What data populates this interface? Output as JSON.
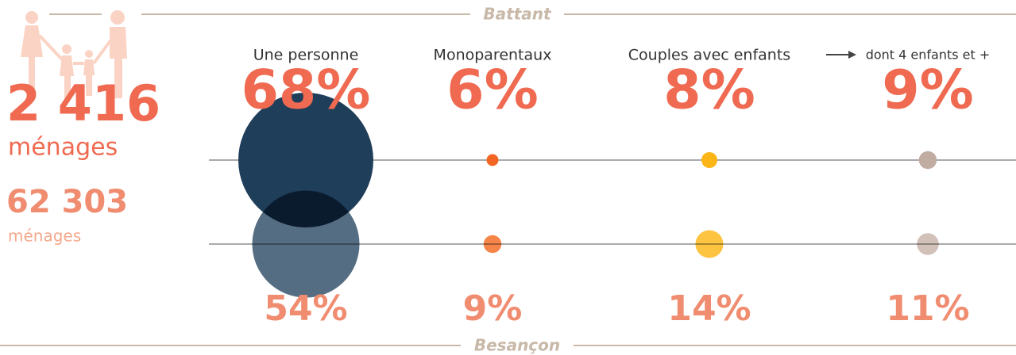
{
  "chart_data": {
    "type": "bubble",
    "stats": {
      "local_count": "2 416",
      "local_unit": "ménages",
      "city_count": "62 303",
      "city_unit": "ménages"
    },
    "categories": [
      "Une personne",
      "Monoparentaux",
      "Couples avec enfants",
      "dont 4 enfants et +"
    ],
    "series": [
      {
        "name": "Battant",
        "colors": [
          "#1f3e5a",
          "#f26522",
          "#fbb516",
          "#c0aca0"
        ],
        "label_color": "#ef6a50",
        "values": [
          68,
          6,
          8,
          9
        ],
        "value_labels": [
          "68%",
          "6%",
          "8%",
          "9%"
        ]
      },
      {
        "name": "Besançon",
        "colors": [
          "#556d82",
          "#f58549",
          "#fcc440",
          "#d1c1b9"
        ],
        "label_color": "#f08c70",
        "values": [
          54,
          9,
          14,
          11
        ],
        "value_labels": [
          "54%",
          "9%",
          "14%",
          "11%"
        ]
      }
    ]
  }
}
